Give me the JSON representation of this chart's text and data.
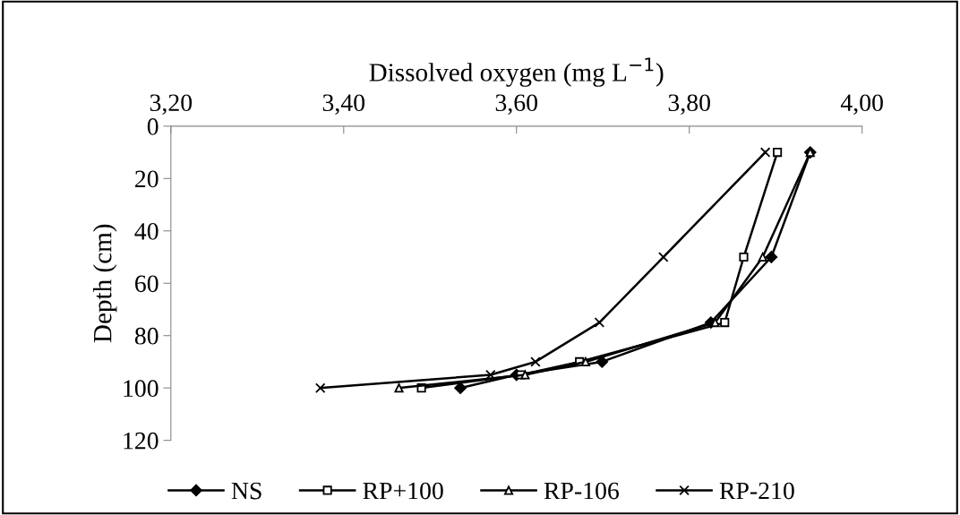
{
  "chart_data": {
    "type": "line",
    "xlabel": "Dissolved oxygen (mg L$^{−1}$)",
    "ylabel": "Depth (cm)",
    "xlim": [
      3.2,
      4.0
    ],
    "xticks": [
      {
        "value": 3.2,
        "label": "3,20"
      },
      {
        "value": 3.4,
        "label": "3,40"
      },
      {
        "value": 3.6,
        "label": "3,60"
      },
      {
        "value": 3.8,
        "label": "3,80"
      },
      {
        "value": 4.0,
        "label": "4,00"
      }
    ],
    "ylim": [
      120,
      0
    ],
    "yticks": [
      0,
      20,
      40,
      60,
      80,
      100,
      120
    ],
    "grid": false,
    "legend": "bottom",
    "line_style": "solid",
    "series": [
      {
        "name": "NS",
        "color": "#000000",
        "marker": "diamond",
        "x": [
          3.94,
          3.895,
          3.825,
          3.699,
          3.6,
          3.535
        ],
        "values": [
          10,
          50,
          75,
          90,
          95,
          100
        ]
      },
      {
        "name": "RP+100",
        "color": "#000000",
        "marker": "square",
        "x": [
          3.902,
          3.863,
          3.841,
          3.673,
          3.605,
          3.49
        ],
        "values": [
          10,
          50,
          75,
          90,
          95,
          100
        ]
      },
      {
        "name": "RP-106",
        "color": "#000000",
        "marker": "triangle",
        "x": [
          3.94,
          3.885,
          3.83,
          3.68,
          3.61,
          3.464
        ],
        "values": [
          10,
          50,
          75,
          90,
          95,
          100
        ]
      },
      {
        "name": "RP-210",
        "color": "#000000",
        "marker": "cross",
        "x": [
          3.888,
          3.77,
          3.696,
          3.622,
          3.57,
          3.373
        ],
        "values": [
          10,
          50,
          75,
          90,
          95,
          100
        ]
      }
    ]
  }
}
